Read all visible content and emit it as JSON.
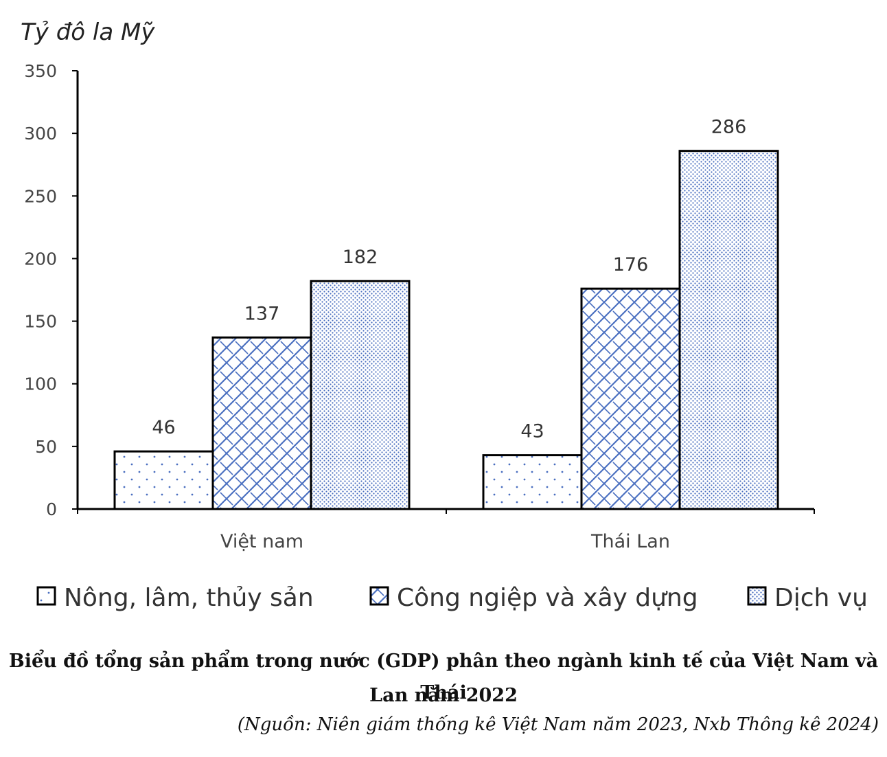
{
  "chart_data": {
    "type": "bar",
    "ylabel": "Tỷ đô la Mỹ",
    "ylim": [
      0,
      350
    ],
    "yticks": [
      0,
      50,
      100,
      150,
      200,
      250,
      300,
      350
    ],
    "categories": [
      "Việt nam",
      "Thái Lan"
    ],
    "series": [
      {
        "name": "Nông, lâm, thủy sản",
        "values": [
          46,
          43
        ],
        "pattern": "sparse-dots"
      },
      {
        "name": "Công ngiệp và xây dựng",
        "values": [
          137,
          176
        ],
        "pattern": "brick-crosshatch"
      },
      {
        "name": "Dịch vụ",
        "values": [
          182,
          286
        ],
        "pattern": "dense-dots"
      }
    ],
    "colors": {
      "pattern": "#4a6fc0",
      "outline": "#000000"
    },
    "legend_position": "bottom"
  },
  "caption": {
    "line1": "Biểu đồ tổng sản phẩm trong nước (GDP) phân theo ngành kinh tế của Việt Nam và Thái",
    "line2": "Lan năm 2022"
  },
  "source": "(Nguồn: Niên giám thống kê Việt Nam năm 2023, Nxb Thông kê 2024)"
}
